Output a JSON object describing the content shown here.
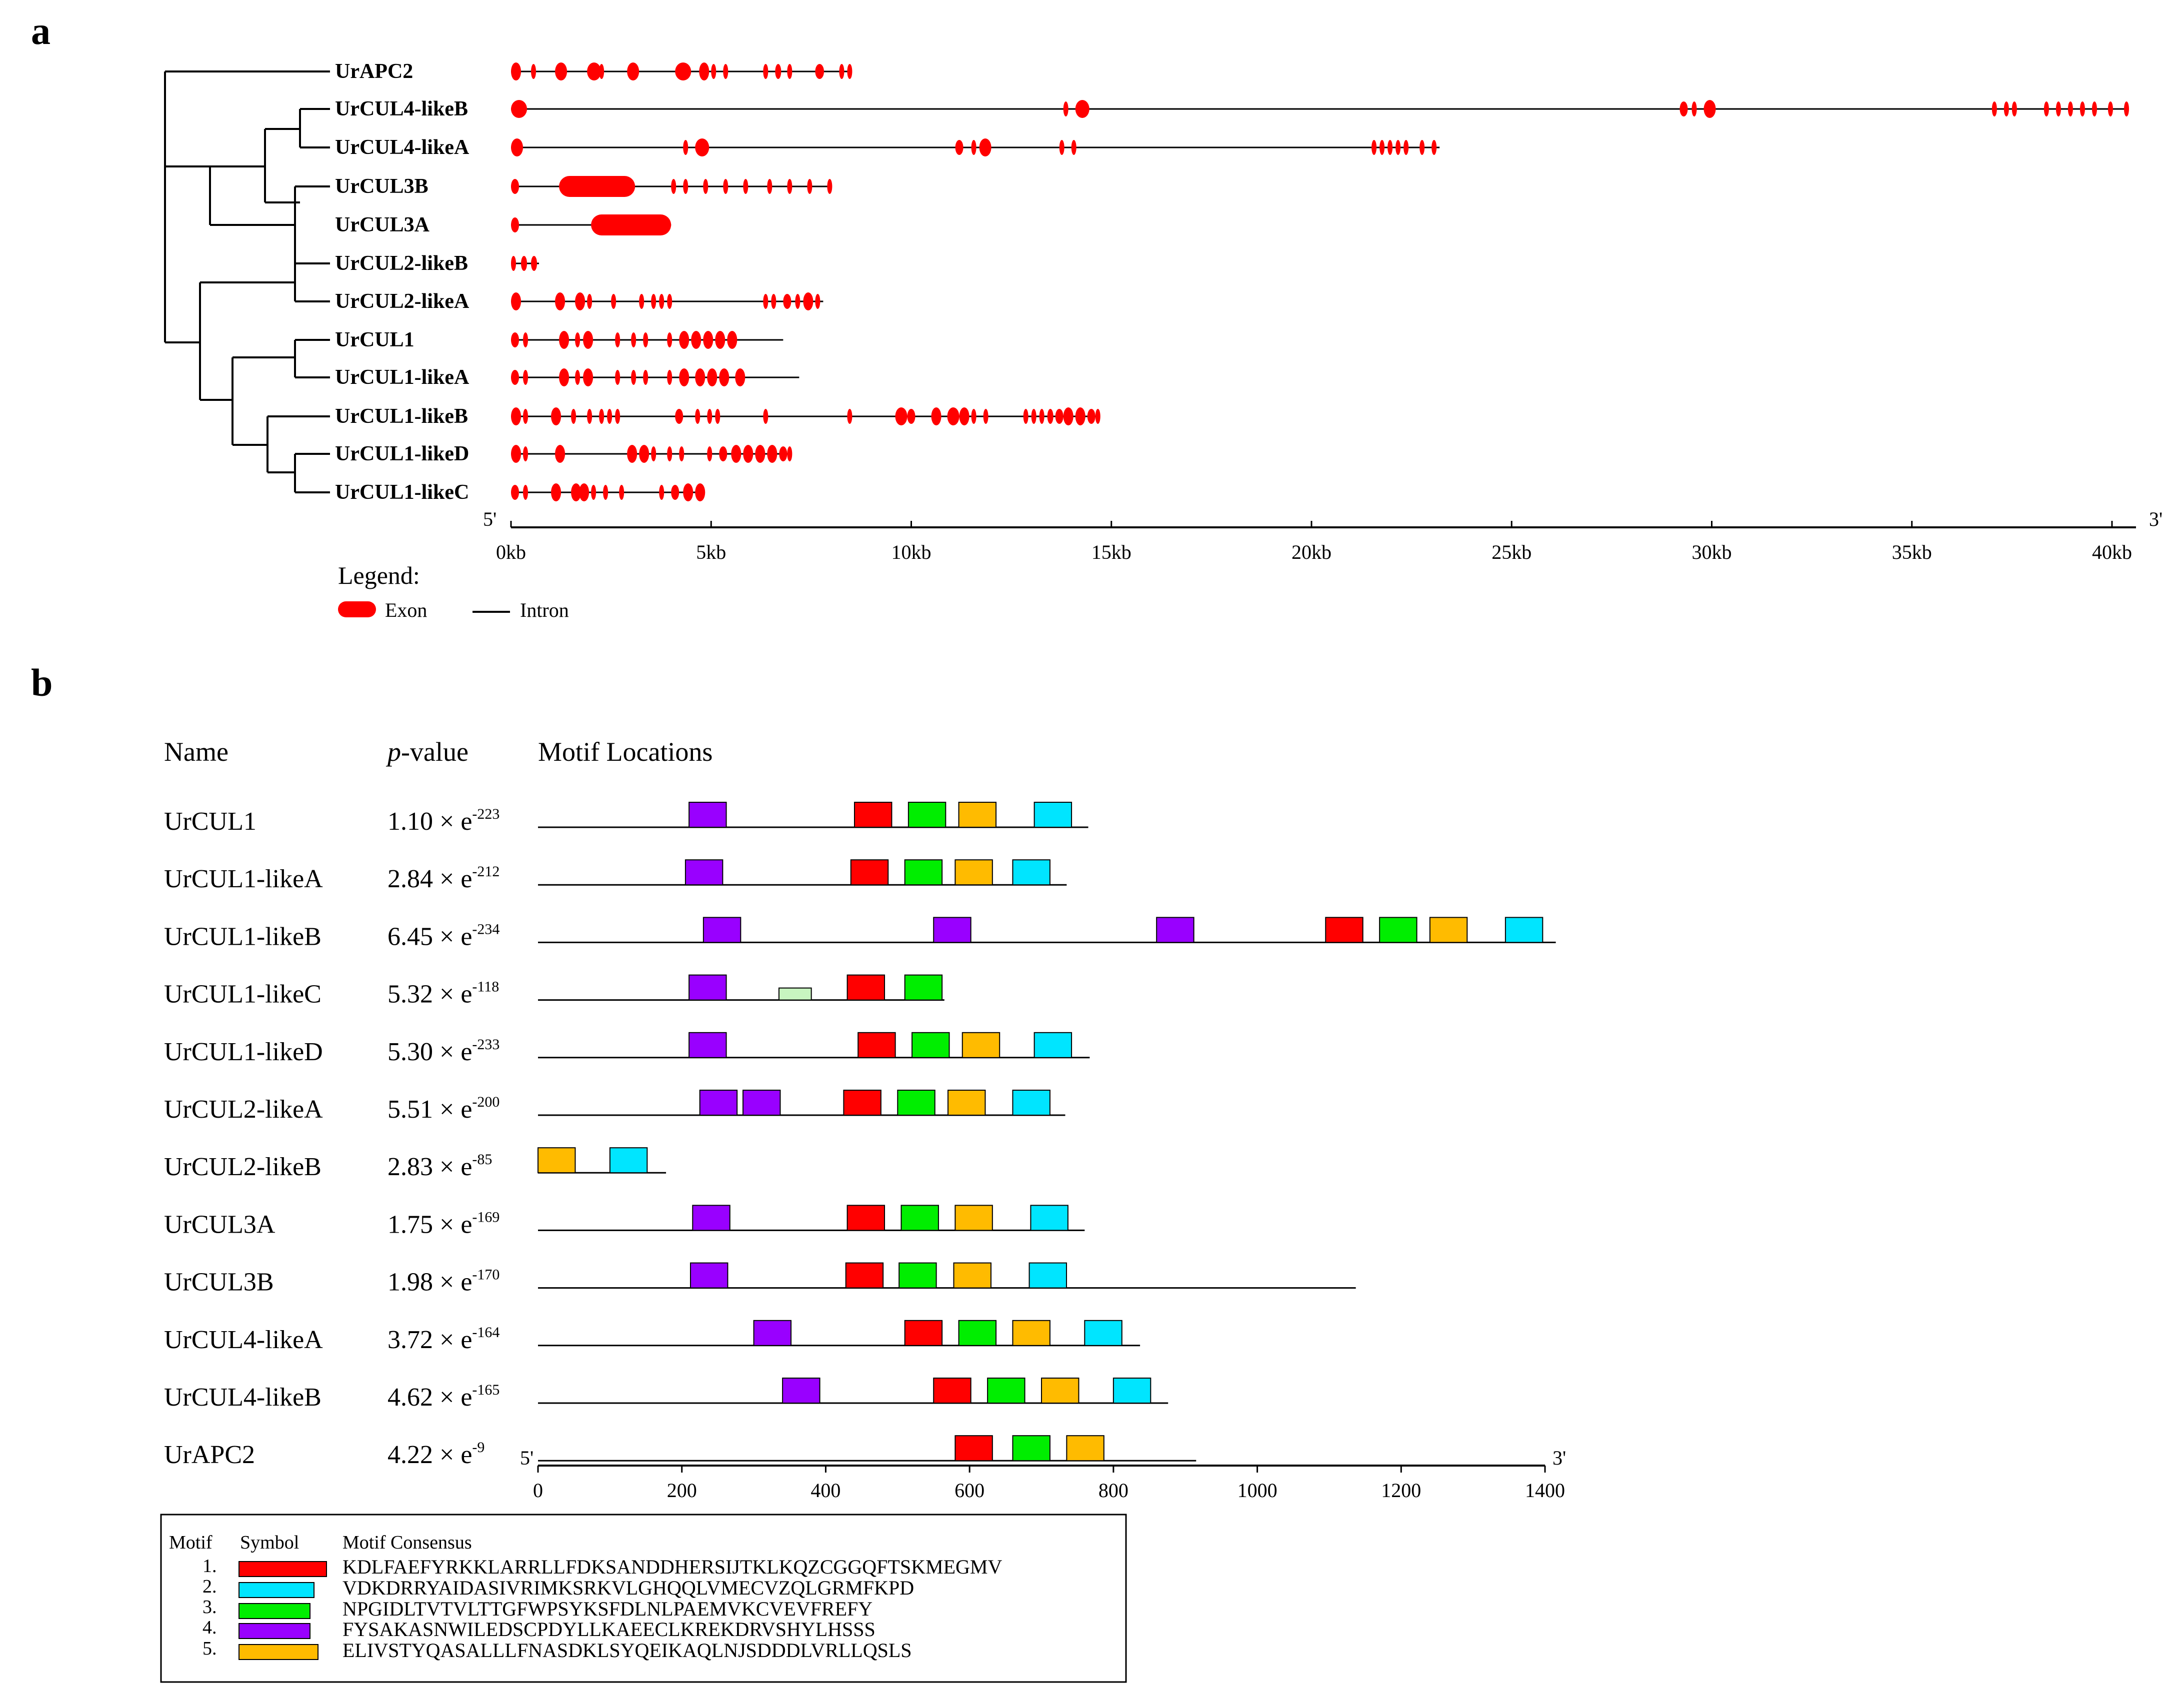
{
  "panel_a": {
    "label": "a",
    "genes": [
      "UrAPC2",
      "UrCUL4-likeB",
      "UrCUL4-likeA",
      "UrCUL3B",
      "UrCUL3A",
      "UrCUL2-likeB",
      "UrCUL2-likeA",
      "UrCUL1",
      "UrCUL1-likeA",
      "UrCUL1-likeB",
      "UrCUL1-likeD",
      "UrCUL1-likeC"
    ],
    "gene_lengths_kb": [
      8.5,
      40.3,
      23.2,
      8.0,
      4.0,
      0.7,
      7.8,
      6.8,
      7.2,
      14.7,
      7.0,
      4.8
    ],
    "axis_ticks": [
      "0kb",
      "5kb",
      "10kb",
      "15kb",
      "20kb",
      "25kb",
      "30kb",
      "35kb",
      "40kb"
    ],
    "axis_max_kb": 40,
    "five_prime": "5'",
    "three_prime": "3'",
    "legend_title": "Legend:",
    "legend_exon": "Exon",
    "legend_intron": "Intron",
    "exon_color": "#ff0000"
  },
  "panel_b": {
    "label": "b",
    "header_name": "Name",
    "header_p": "p",
    "header_p_suffix": "-value",
    "header_motif": "Motif Locations",
    "rows": [
      {
        "name": "UrCUL1",
        "p_base": "1.10 × e",
        "p_exp": "-223",
        "length": 765
      },
      {
        "name": "UrCUL1-likeA",
        "p_base": "2.84 × e",
        "p_exp": "-212",
        "length": 735
      },
      {
        "name": "UrCUL1-likeB",
        "p_base": "6.45 × e",
        "p_exp": "-234",
        "length": 1415
      },
      {
        "name": "UrCUL1-likeC",
        "p_base": "5.32 × e",
        "p_exp": "-118",
        "length": 565
      },
      {
        "name": "UrCUL1-likeD",
        "p_base": "5.30 × e",
        "p_exp": "-233",
        "length": 767
      },
      {
        "name": "UrCUL2-likeA",
        "p_base": "5.51 × e",
        "p_exp": "-200",
        "length": 733
      },
      {
        "name": "UrCUL2-likeB",
        "p_base": "2.83 × e",
        "p_exp": "-85",
        "length": 178
      },
      {
        "name": "UrCUL3A",
        "p_base": "1.75 × e",
        "p_exp": "-169",
        "length": 760
      },
      {
        "name": "UrCUL3B",
        "p_base": "1.98 × e",
        "p_exp": "-170",
        "length": 1137
      },
      {
        "name": "UrCUL4-likeA",
        "p_base": "3.72 × e",
        "p_exp": "-164",
        "length": 837
      },
      {
        "name": "UrCUL4-likeB",
        "p_base": "4.62 × e",
        "p_exp": "-165",
        "length": 876
      },
      {
        "name": "UrAPC2",
        "p_base": "4.22 × e",
        "p_exp": "-9",
        "length": 915
      }
    ],
    "axis_ticks": [
      0,
      200,
      400,
      600,
      800,
      1000,
      1200,
      1400
    ],
    "five_prime": "5'",
    "three_prime": "3'",
    "motif_colors": {
      "1": "#ff0000",
      "2": "#00e5ff",
      "3": "#00ee00",
      "4": "#9900ff",
      "5": "#ffbb00",
      "6": "#c8f5c0"
    }
  },
  "motif_legend": {
    "header_motif": "Motif",
    "header_symbol": "Symbol",
    "header_consensus": "Motif Consensus",
    "items": [
      {
        "num": "1.",
        "consensus": "KDLFAEFYRKKLARRLLFDKSANDDHERSIJTKLKQZCGGQFTSKMEGMV"
      },
      {
        "num": "2.",
        "consensus": "VDKDRRYAIDASIVRIMKSRKVLGHQQLVMECVZQLGRMFKPD"
      },
      {
        "num": "3.",
        "consensus": "NPGIDLTVTVLTTGFWPSYKSFDLNLPAEMVKCVEVFREFY"
      },
      {
        "num": "4.",
        "consensus": "FYSAKASNWILEDSCPDYLLKAEECLKREKDRVSHYLHSSS"
      },
      {
        "num": "5.",
        "consensus": "ELIVSTYQASALLLFNASDKLSYQEIKAQLNJSDDDLVRLLQSLS"
      }
    ]
  }
}
